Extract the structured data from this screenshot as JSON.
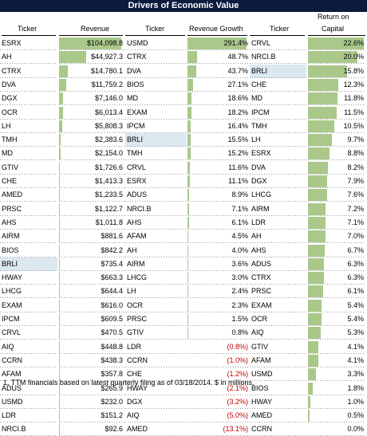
{
  "title": "Drivers of Economic Value",
  "headers": {
    "revenue_ticker": "Ticker",
    "revenue": "Revenue",
    "growth_ticker": "Ticker",
    "growth": "Revenue Growth",
    "roc_ticker": "Ticker",
    "roc_line1": "Return on",
    "roc_line2": "Capital"
  },
  "colors": {
    "title_bg": "#0b1b3d",
    "bar": "#a9c88a",
    "highlight": "#dbe8f0",
    "negative": "#c00000"
  },
  "highlight_ticker": "BRLI",
  "revenue": [
    {
      "ticker": "ESRX",
      "label": "$104,098.8",
      "value": 104098.8
    },
    {
      "ticker": "AH",
      "label": "$44,927.3",
      "value": 44927.3
    },
    {
      "ticker": "CTRX",
      "label": "$14,780.1",
      "value": 14780.1
    },
    {
      "ticker": "DVA",
      "label": "$11,759.2",
      "value": 11759.2
    },
    {
      "ticker": "DGX",
      "label": "$7,146.0",
      "value": 7146.0
    },
    {
      "ticker": "OCR",
      "label": "$6,013.4",
      "value": 6013.4
    },
    {
      "ticker": "LH",
      "label": "$5,808.3",
      "value": 5808.3
    },
    {
      "ticker": "TMH",
      "label": "$2,383.6",
      "value": 2383.6
    },
    {
      "ticker": "MD",
      "label": "$2,154.0",
      "value": 2154.0
    },
    {
      "ticker": "GTIV",
      "label": "$1,726.6",
      "value": 1726.6
    },
    {
      "ticker": "CHE",
      "label": "$1,413.3",
      "value": 1413.3
    },
    {
      "ticker": "AMED",
      "label": "$1,233.5",
      "value": 1233.5
    },
    {
      "ticker": "PRSC",
      "label": "$1,122.7",
      "value": 1122.7
    },
    {
      "ticker": "AHS",
      "label": "$1,011.8",
      "value": 1011.8
    },
    {
      "ticker": "AIRM",
      "label": "$881.6",
      "value": 881.6
    },
    {
      "ticker": "BIOS",
      "label": "$842.2",
      "value": 842.2
    },
    {
      "ticker": "BRLI",
      "label": "$735.4",
      "value": 735.4
    },
    {
      "ticker": "HWAY",
      "label": "$663.3",
      "value": 663.3
    },
    {
      "ticker": "LHCG",
      "label": "$644.4",
      "value": 644.4
    },
    {
      "ticker": "EXAM",
      "label": "$616.0",
      "value": 616.0
    },
    {
      "ticker": "IPCM",
      "label": "$609.5",
      "value": 609.5
    },
    {
      "ticker": "CRVL",
      "label": "$470.5",
      "value": 470.5
    },
    {
      "ticker": "AIQ",
      "label": "$448.8",
      "value": 448.8
    },
    {
      "ticker": "CCRN",
      "label": "$438.3",
      "value": 438.3
    },
    {
      "ticker": "AFAM",
      "label": "$357.8",
      "value": 357.8
    },
    {
      "ticker": "ADUS",
      "label": "$265.9",
      "value": 265.9
    },
    {
      "ticker": "USMD",
      "label": "$232.0",
      "value": 232.0
    },
    {
      "ticker": "LDR",
      "label": "$151.2",
      "value": 151.2
    },
    {
      "ticker": "NRCI.B",
      "label": "$92.6",
      "value": 92.6
    }
  ],
  "growth": [
    {
      "ticker": "USMD",
      "label": "291.4%",
      "value": 291.4
    },
    {
      "ticker": "CTRX",
      "label": "48.7%",
      "value": 48.7
    },
    {
      "ticker": "DVA",
      "label": "43.7%",
      "value": 43.7
    },
    {
      "ticker": "BIOS",
      "label": "27.1%",
      "value": 27.1
    },
    {
      "ticker": "MD",
      "label": "18.6%",
      "value": 18.6
    },
    {
      "ticker": "EXAM",
      "label": "18.2%",
      "value": 18.2
    },
    {
      "ticker": "IPCM",
      "label": "16.4%",
      "value": 16.4
    },
    {
      "ticker": "BRLI",
      "label": "15.5%",
      "value": 15.5
    },
    {
      "ticker": "TMH",
      "label": "15.2%",
      "value": 15.2
    },
    {
      "ticker": "CRVL",
      "label": "11.6%",
      "value": 11.6
    },
    {
      "ticker": "ESRX",
      "label": "11.1%",
      "value": 11.1
    },
    {
      "ticker": "ADUS",
      "label": "8.9%",
      "value": 8.9
    },
    {
      "ticker": "NRCI.B",
      "label": "7.1%",
      "value": 7.1
    },
    {
      "ticker": "AHS",
      "label": "6.1%",
      "value": 6.1
    },
    {
      "ticker": "AFAM",
      "label": "4.5%",
      "value": 4.5
    },
    {
      "ticker": "AH",
      "label": "4.0%",
      "value": 4.0
    },
    {
      "ticker": "AIRM",
      "label": "3.6%",
      "value": 3.6
    },
    {
      "ticker": "LHCG",
      "label": "3.0%",
      "value": 3.0
    },
    {
      "ticker": "LH",
      "label": "2.4%",
      "value": 2.4
    },
    {
      "ticker": "OCR",
      "label": "2.3%",
      "value": 2.3
    },
    {
      "ticker": "PRSC",
      "label": "1.5%",
      "value": 1.5
    },
    {
      "ticker": "GTIV",
      "label": "0.8%",
      "value": 0.8
    },
    {
      "ticker": "LDR",
      "label": "(0.8%)",
      "value": -0.8
    },
    {
      "ticker": "CCRN",
      "label": "(1.0%)",
      "value": -1.0
    },
    {
      "ticker": "CHE",
      "label": "(1.2%)",
      "value": -1.2
    },
    {
      "ticker": "HWAY",
      "label": "(2.1%)",
      "value": -2.1
    },
    {
      "ticker": "DGX",
      "label": "(3.2%)",
      "value": -3.2
    },
    {
      "ticker": "AIQ",
      "label": "(5.0%)",
      "value": -5.0
    },
    {
      "ticker": "AMED",
      "label": "(13.1%)",
      "value": -13.1
    }
  ],
  "roc": [
    {
      "ticker": "CRVL",
      "label": "22.6%",
      "value": 22.6
    },
    {
      "ticker": "NRCI.B",
      "label": "20.0%",
      "value": 20.0
    },
    {
      "ticker": "BRLI",
      "label": "15.8%",
      "value": 15.8
    },
    {
      "ticker": "CHE",
      "label": "12.3%",
      "value": 12.3
    },
    {
      "ticker": "MD",
      "label": "11.8%",
      "value": 11.8
    },
    {
      "ticker": "IPCM",
      "label": "11.5%",
      "value": 11.5
    },
    {
      "ticker": "TMH",
      "label": "10.5%",
      "value": 10.5
    },
    {
      "ticker": "LH",
      "label": "9.7%",
      "value": 9.7
    },
    {
      "ticker": "ESRX",
      "label": "8.8%",
      "value": 8.8
    },
    {
      "ticker": "DVA",
      "label": "8.2%",
      "value": 8.2
    },
    {
      "ticker": "DGX",
      "label": "7.9%",
      "value": 7.9
    },
    {
      "ticker": "LHCG",
      "label": "7.6%",
      "value": 7.6
    },
    {
      "ticker": "AIRM",
      "label": "7.2%",
      "value": 7.2
    },
    {
      "ticker": "LDR",
      "label": "7.1%",
      "value": 7.1
    },
    {
      "ticker": "AH",
      "label": "7.0%",
      "value": 7.0
    },
    {
      "ticker": "AHS",
      "label": "6.7%",
      "value": 6.7
    },
    {
      "ticker": "ADUS",
      "label": "6.3%",
      "value": 6.3
    },
    {
      "ticker": "CTRX",
      "label": "6.3%",
      "value": 6.3
    },
    {
      "ticker": "PRSC",
      "label": "6.1%",
      "value": 6.1
    },
    {
      "ticker": "EXAM",
      "label": "5.4%",
      "value": 5.4
    },
    {
      "ticker": "OCR",
      "label": "5.4%",
      "value": 5.4
    },
    {
      "ticker": "AIQ",
      "label": "5.3%",
      "value": 5.3
    },
    {
      "ticker": "GTIV",
      "label": "4.1%",
      "value": 4.1
    },
    {
      "ticker": "AFAM",
      "label": "4.1%",
      "value": 4.1
    },
    {
      "ticker": "USMD",
      "label": "3.3%",
      "value": 3.3
    },
    {
      "ticker": "BIOS",
      "label": "1.8%",
      "value": 1.8
    },
    {
      "ticker": "HWAY",
      "label": "1.0%",
      "value": 1.0
    },
    {
      "ticker": "AMED",
      "label": "0.5%",
      "value": 0.5
    },
    {
      "ticker": "CCRN",
      "label": "0.0%",
      "value": 0.0
    }
  ],
  "footnote": "1. TTM financials based on latest quarterly filing as of 03/18/2014. $ in millions."
}
